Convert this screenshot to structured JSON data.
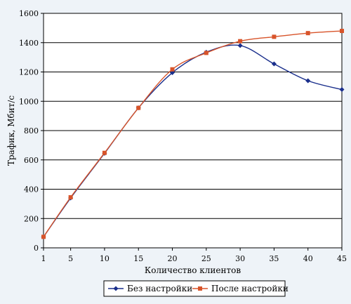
{
  "chart_data": {
    "type": "line",
    "title": "",
    "xlabel": "Количество клиентов",
    "ylabel": "Трафик, Мбит/с",
    "x": [
      1,
      5,
      10,
      15,
      20,
      25,
      30,
      35,
      40,
      45
    ],
    "ylim": [
      0,
      1600
    ],
    "yticks": [
      0,
      200,
      400,
      600,
      800,
      1000,
      1200,
      1400,
      1600
    ],
    "grid": "horizontal",
    "legend_position": "bottom",
    "series": [
      {
        "name": "Без настройки",
        "color": "#1a2f8c",
        "marker": "diamond",
        "values": [
          75,
          340,
          645,
          955,
          1195,
          1335,
          1380,
          1255,
          1140,
          1080
        ]
      },
      {
        "name": "После настройки",
        "color": "#d8542a",
        "marker": "square",
        "values": [
          75,
          345,
          648,
          955,
          1218,
          1330,
          1410,
          1440,
          1465,
          1480
        ]
      }
    ]
  }
}
